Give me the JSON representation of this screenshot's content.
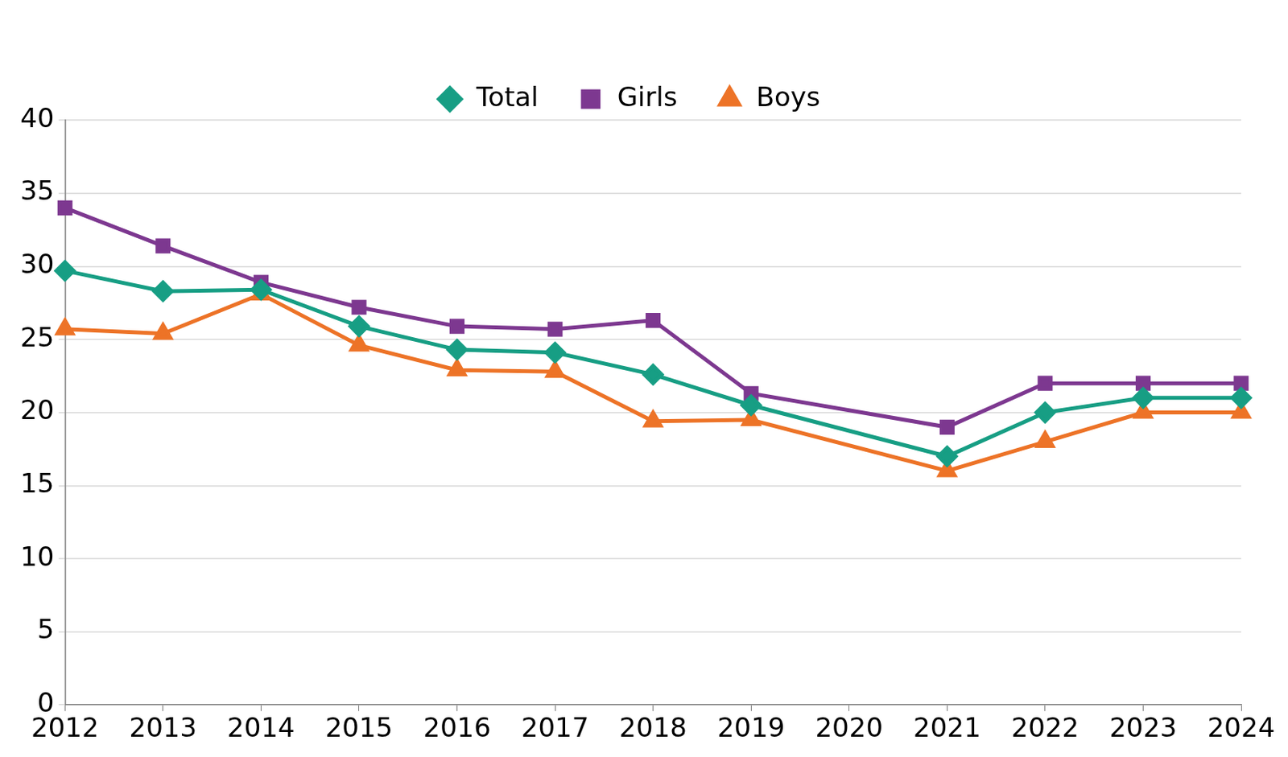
{
  "chart_data": {
    "type": "line",
    "categories": [
      "2012",
      "2013",
      "2014",
      "2015",
      "2016",
      "2017",
      "2018",
      "2019",
      "2020",
      "2021",
      "2022",
      "2023",
      "2024"
    ],
    "series": [
      {
        "name": "Total",
        "color": "#179e84",
        "marker": "diamond",
        "values": [
          29.7,
          28.3,
          28.4,
          25.9,
          24.3,
          24.1,
          22.6,
          20.5,
          null,
          17,
          20,
          21,
          21
        ]
      },
      {
        "name": "Girls",
        "color": "#7d3890",
        "marker": "square",
        "values": [
          34,
          31.4,
          28.9,
          27.2,
          25.9,
          25.7,
          26.3,
          21.3,
          null,
          19,
          22,
          22,
          22
        ]
      },
      {
        "name": "Boys",
        "color": "#ed7327",
        "marker": "triangle",
        "values": [
          25.7,
          25.4,
          28.1,
          24.6,
          22.9,
          22.8,
          19.4,
          19.5,
          null,
          16,
          18,
          20,
          20
        ]
      }
    ],
    "ylim": [
      0,
      40
    ],
    "yticks": [
      0,
      5,
      10,
      15,
      20,
      25,
      30,
      35,
      40
    ],
    "grid": true,
    "legend": "top"
  }
}
